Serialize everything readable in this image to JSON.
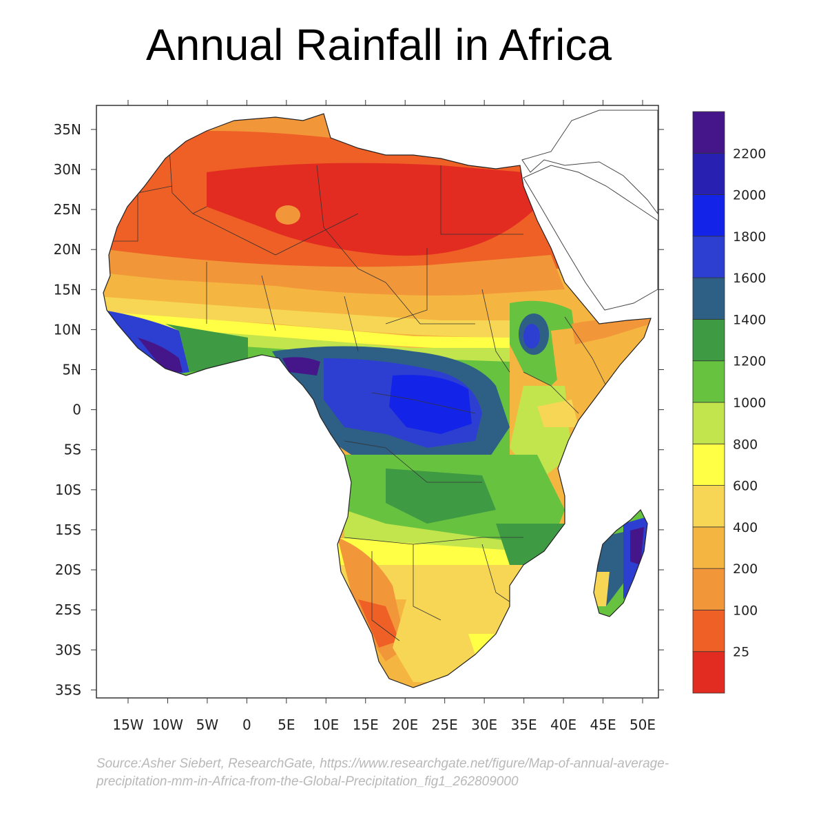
{
  "title": "Annual Rainfall in Africa",
  "source": "Source:Asher Siebert, ResearchGate, https://www.researchgate.net/figure/Map-of-annual-average-precipitation-mm-in-Africa-from-the-Global-Precipitation_fig1_262809000",
  "map": {
    "region": "Africa",
    "lon_range": [
      -19,
      52
    ],
    "lat_range": [
      -36,
      38
    ],
    "lon_ticks": [
      {
        "value": -15,
        "label": "15W"
      },
      {
        "value": -10,
        "label": "10W"
      },
      {
        "value": -5,
        "label": "5W"
      },
      {
        "value": 0,
        "label": "0"
      },
      {
        "value": 5,
        "label": "5E"
      },
      {
        "value": 10,
        "label": "10E"
      },
      {
        "value": 15,
        "label": "15E"
      },
      {
        "value": 20,
        "label": "20E"
      },
      {
        "value": 25,
        "label": "25E"
      },
      {
        "value": 30,
        "label": "30E"
      },
      {
        "value": 35,
        "label": "35E"
      },
      {
        "value": 40,
        "label": "40E"
      },
      {
        "value": 45,
        "label": "45E"
      },
      {
        "value": 50,
        "label": "50E"
      }
    ],
    "lat_ticks": [
      {
        "value": 35,
        "label": "35N"
      },
      {
        "value": 30,
        "label": "30N"
      },
      {
        "value": 25,
        "label": "25N"
      },
      {
        "value": 20,
        "label": "20N"
      },
      {
        "value": 15,
        "label": "15N"
      },
      {
        "value": 10,
        "label": "10N"
      },
      {
        "value": 5,
        "label": "5N"
      },
      {
        "value": 0,
        "label": "0"
      },
      {
        "value": -5,
        "label": "5S"
      },
      {
        "value": -10,
        "label": "10S"
      },
      {
        "value": -15,
        "label": "15S"
      },
      {
        "value": -20,
        "label": "20S"
      },
      {
        "value": -25,
        "label": "25S"
      },
      {
        "value": -30,
        "label": "30S"
      },
      {
        "value": -35,
        "label": "35S"
      }
    ]
  },
  "legend": {
    "colors": [
      "#e32c21",
      "#ee6026",
      "#f2963a",
      "#f5b541",
      "#f7d655",
      "#ffff45",
      "#c2e44c",
      "#66c23f",
      "#3f9a44",
      "#2e5f85",
      "#2d3fd0",
      "#1423e8",
      "#2820b0",
      "#45168a"
    ],
    "labels": [
      "25",
      "100",
      "200",
      "400",
      "600",
      "800",
      "1000",
      "1200",
      "1400",
      "1600",
      "1800",
      "2000",
      "2200"
    ]
  }
}
